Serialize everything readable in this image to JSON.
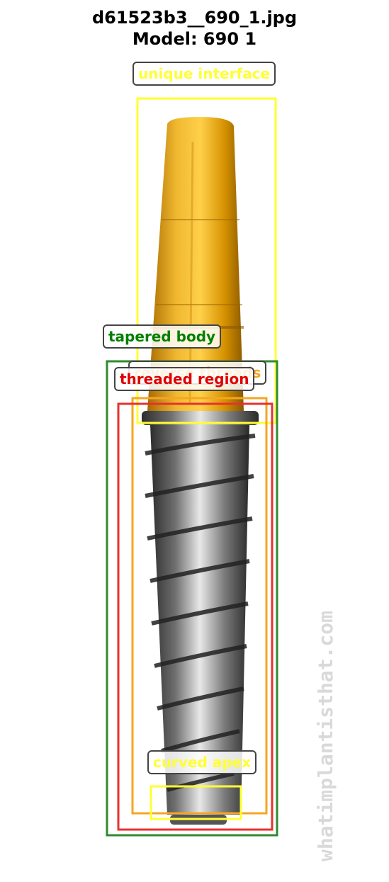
{
  "figure": {
    "title_line_1": "d61523b3__690_1.jpg",
    "title_line_2": "Model: 690 1"
  },
  "annotations": [
    {
      "label": "unique interface",
      "color": "#ffff33"
    },
    {
      "label": "tapered body",
      "color": "#008000"
    },
    {
      "label": "reverse threads",
      "color": "#f5a623"
    },
    {
      "label": "threaded region",
      "color": "#e00000"
    },
    {
      "label": "curved apex",
      "color": "#ffff33"
    }
  ],
  "watermark": {
    "text": "whatimplantisthat.com"
  },
  "colors": {
    "implant_gold": "#e0a020",
    "implant_grey": "#6a6a6a",
    "label_border": "#444444"
  }
}
